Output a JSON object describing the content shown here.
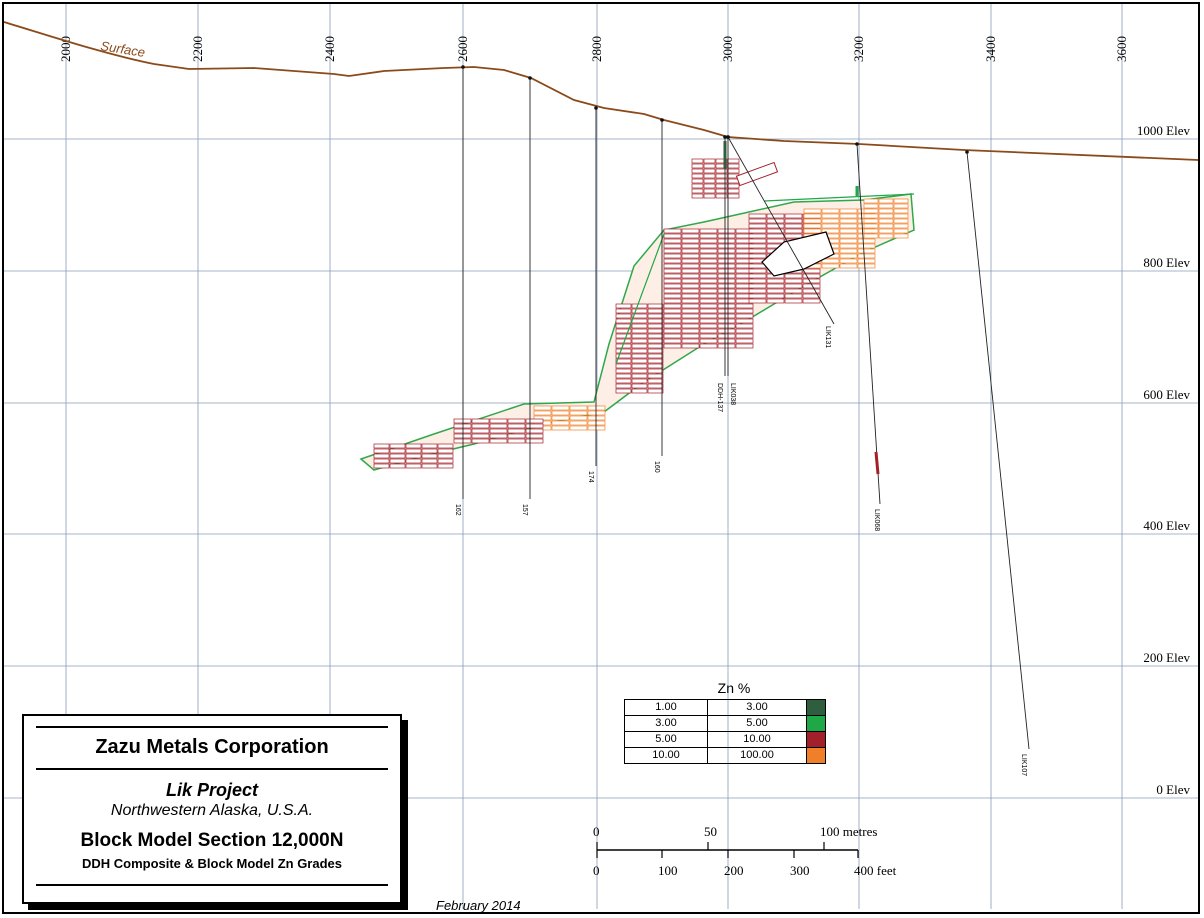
{
  "section": {
    "easting_ticks": [
      "2000",
      "2200",
      "2400",
      "2600",
      "2800",
      "3000",
      "3200",
      "3400",
      "3600"
    ],
    "elevation_labels": [
      "1000 Elev",
      "800 Elev",
      "600 Elev",
      "400 Elev",
      "200 Elev",
      "0 Elev"
    ],
    "surface_label": "Surface"
  },
  "drill_holes": [
    {
      "label": "162"
    },
    {
      "label": "157"
    },
    {
      "label": "174"
    },
    {
      "label": "160"
    },
    {
      "label": "LIK038"
    },
    {
      "label": "DDH-137"
    },
    {
      "label": "LIK131"
    },
    {
      "label": "LIK068"
    },
    {
      "label": "LIK107"
    }
  ],
  "legend": {
    "title": "Zn %",
    "rows": [
      {
        "from": "1.00",
        "to": "3.00",
        "color": "#2f5e3e"
      },
      {
        "from": "3.00",
        "to": "5.00",
        "color": "#1fa846"
      },
      {
        "from": "5.00",
        "to": "10.00",
        "color": "#a3202a"
      },
      {
        "from": "10.00",
        "to": "100.00",
        "color": "#f07f2a"
      }
    ]
  },
  "scale_bar": {
    "metres_labels": [
      "0",
      "50",
      "100 metres"
    ],
    "feet_labels": [
      "0",
      "100",
      "200",
      "300",
      "400 feet"
    ]
  },
  "title_block": {
    "company": "Zazu Metals Corporation",
    "project": "Lik Project",
    "location": "Northwestern Alaska, U.S.A.",
    "section": "Block Model Section 12,000N",
    "subtitle": "DDH Composite & Block Model Zn Grades"
  },
  "date": "February 2014",
  "colors": {
    "surface": "#8b4a1a",
    "grid": "#8a9bb5",
    "high_grade": "#a3202a",
    "very_high_grade": "#f07f2a",
    "mid_grade": "#1fa846",
    "low_grade": "#2f5e3e"
  }
}
